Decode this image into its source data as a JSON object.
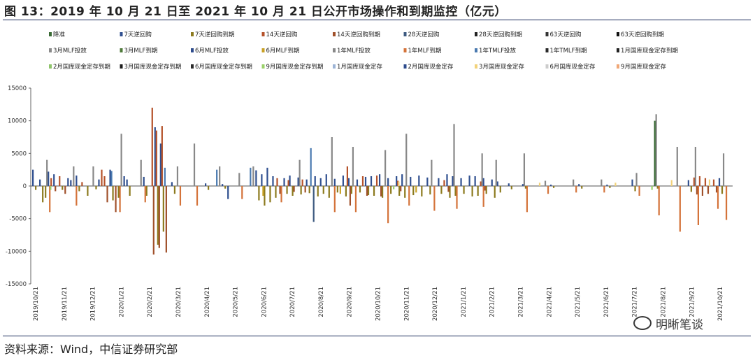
{
  "title": "图 13：2019 年 10 月 21 日至 2021 年 10 月 21 日公开市场操作和到期监控（亿元）",
  "source": "资料来源：Wind，中信证券研究部",
  "watermark": "明晰笔谈",
  "chart_data": {
    "type": "bar",
    "ylim": [
      -15000,
      15000
    ],
    "yticks": [
      15000,
      10000,
      5000,
      0,
      -5000,
      -10000,
      -15000
    ],
    "xticks": [
      "2019/10/21",
      "2019/11/21",
      "2019/12/21",
      "2020/1/21",
      "2020/2/21",
      "2020/3/21",
      "2020/4/21",
      "2020/5/21",
      "2020/6/21",
      "2020/7/21",
      "2020/8/21",
      "2020/9/21",
      "2020/10/21",
      "2020/11/21",
      "2020/12/21",
      "2021/1/21",
      "2021/2/21",
      "2021/3/21",
      "2021/4/21",
      "2021/5/21",
      "2021/6/21",
      "2021/7/21",
      "2021/8/21",
      "2021/9/21",
      "2021/10/21"
    ],
    "legend": [
      {
        "name": "降准",
        "color": "#3a6b35"
      },
      {
        "name": "7天逆回购",
        "color": "#2f4f8f"
      },
      {
        "name": "7天逆回购到期",
        "color": "#8c7a1e"
      },
      {
        "name": "14天逆回购",
        "color": "#b5522a"
      },
      {
        "name": "14天逆回购到期",
        "color": "#a0502a"
      },
      {
        "name": "28天逆回购",
        "color": "#3d5a80"
      },
      {
        "name": "28天逆回购到期",
        "color": "#222222"
      },
      {
        "name": "63天逆回购",
        "color": "#333333"
      },
      {
        "name": "63天逆回购到期",
        "color": "#111111"
      },
      {
        "name": "3月MLF投放",
        "color": "#8a8a8a"
      },
      {
        "name": "3月MLF到期",
        "color": "#4f7a3a"
      },
      {
        "name": "6月MLF投放",
        "color": "#2d4b8c"
      },
      {
        "name": "6月MLF到期",
        "color": "#c9a227"
      },
      {
        "name": "1年MLF投放",
        "color": "#888888"
      },
      {
        "name": "1年MLF到期",
        "color": "#d4733a"
      },
      {
        "name": "1年TMLF投放",
        "color": "#4a7ab0"
      },
      {
        "name": "1年TMLF到期",
        "color": "#2a2a2a"
      },
      {
        "name": "1月国库现金定存到期",
        "color": "#222222"
      },
      {
        "name": "2月国库现金定存到期",
        "color": "#8fc46b"
      },
      {
        "name": "3月国库现金定存到期",
        "color": "#1a1a1a"
      },
      {
        "name": "6月国库现金定存到期",
        "color": "#2a2a2a"
      },
      {
        "name": "9月国库现金定存到期",
        "color": "#9bd16b"
      },
      {
        "name": "1月国库现金定存",
        "color": "#9db4d6"
      },
      {
        "name": "2月国库现金定存",
        "color": "#2d4b8c"
      },
      {
        "name": "3月国库现金定存",
        "color": "#f2d27a"
      },
      {
        "name": "6月国库现金定存",
        "color": "#cccccc"
      },
      {
        "name": "9月国库现金定存",
        "color": "#f0a878"
      }
    ],
    "series": [
      {
        "name": "7天逆回购",
        "color": "#2f4f8f",
        "points": [
          [
            0.5,
            2500
          ],
          [
            3,
            1000
          ],
          [
            6,
            2200
          ],
          [
            8,
            1800
          ],
          [
            13,
            1200
          ],
          [
            14,
            900
          ],
          [
            16,
            1600
          ],
          [
            24,
            1000
          ],
          [
            28,
            2500
          ],
          [
            33,
            1500
          ],
          [
            34,
            1000
          ],
          [
            40,
            1400
          ],
          [
            44,
            9000
          ],
          [
            46,
            6500
          ],
          [
            50,
            600
          ],
          [
            62,
            400
          ],
          [
            68,
            300
          ],
          [
            70,
            -2000
          ],
          [
            80,
            2400
          ],
          [
            82,
            1800
          ],
          [
            84,
            2800
          ],
          [
            86,
            1500
          ],
          [
            90,
            1200
          ],
          [
            92,
            1600
          ],
          [
            95,
            1300
          ],
          [
            98,
            1000
          ],
          [
            101,
            1500
          ],
          [
            103,
            1200
          ],
          [
            105,
            1800
          ],
          [
            108,
            1100
          ],
          [
            111,
            1600
          ],
          [
            113,
            1200
          ],
          [
            116,
            1000
          ],
          [
            119,
            1400
          ],
          [
            121,
            1500
          ],
          [
            124,
            1800
          ],
          [
            127,
            1200
          ],
          [
            130,
            1500
          ],
          [
            132,
            1800
          ],
          [
            135,
            1400
          ],
          [
            138,
            1600
          ],
          [
            141,
            1300
          ],
          [
            145,
            1200
          ],
          [
            148,
            1800
          ],
          [
            150,
            1500
          ],
          [
            153,
            1200
          ],
          [
            156,
            1600
          ],
          [
            158,
            1500
          ],
          [
            161,
            1200
          ],
          [
            164,
            1000
          ],
          [
            166,
            700
          ],
          [
            170,
            400
          ],
          [
            175,
            300
          ],
          [
            185,
            200
          ],
          [
            195,
            300
          ],
          [
            205,
            200
          ],
          [
            214,
            1000
          ],
          [
            222,
            300
          ],
          [
            234,
            900
          ],
          [
            245,
            1200
          ]
        ]
      },
      {
        "name": "7天逆回购到期",
        "color": "#8c7a1e",
        "points": [
          [
            1.5,
            -600
          ],
          [
            4,
            -2500
          ],
          [
            5,
            -1800
          ],
          [
            11,
            -600
          ],
          [
            17,
            -800
          ],
          [
            20,
            -1500
          ],
          [
            23,
            -500
          ],
          [
            29,
            -2200
          ],
          [
            31,
            -1800
          ],
          [
            35,
            -1500
          ],
          [
            41,
            -1500
          ],
          [
            45,
            -9000
          ],
          [
            47,
            -7000
          ],
          [
            51,
            -1200
          ],
          [
            63,
            -600
          ],
          [
            69,
            -400
          ],
          [
            81,
            -2200
          ],
          [
            83,
            -3000
          ],
          [
            85,
            -2500
          ],
          [
            87,
            -1800
          ],
          [
            91,
            -1200
          ],
          [
            93,
            -1500
          ],
          [
            96,
            -1300
          ],
          [
            99,
            -1100
          ],
          [
            102,
            -1600
          ],
          [
            104,
            -1200
          ],
          [
            106,
            -1800
          ],
          [
            109,
            -1000
          ],
          [
            112,
            -1600
          ],
          [
            114,
            -1200
          ],
          [
            117,
            -1000
          ],
          [
            120,
            -1400
          ],
          [
            122,
            -1500
          ],
          [
            125,
            -1800
          ],
          [
            128,
            -1200
          ],
          [
            131,
            -1500
          ],
          [
            133,
            -1800
          ],
          [
            136,
            -1400
          ],
          [
            139,
            -1600
          ],
          [
            142,
            -1300
          ],
          [
            146,
            -1200
          ],
          [
            149,
            -1800
          ],
          [
            151,
            -1500
          ],
          [
            154,
            -1200
          ],
          [
            157,
            -1600
          ],
          [
            159,
            -1500
          ],
          [
            162,
            -1200
          ],
          [
            165,
            -1800
          ],
          [
            167,
            -1000
          ],
          [
            171,
            -500
          ],
          [
            176,
            -400
          ],
          [
            186,
            -300
          ],
          [
            196,
            -400
          ],
          [
            206,
            -300
          ],
          [
            215,
            -800
          ],
          [
            223,
            -400
          ],
          [
            235,
            -900
          ],
          [
            246,
            -1200
          ]
        ]
      },
      {
        "name": "14天逆回购",
        "color": "#b5522a",
        "points": [
          [
            7,
            1200
          ],
          [
            10,
            1500
          ],
          [
            18,
            600
          ],
          [
            25,
            2500
          ],
          [
            26,
            1500
          ],
          [
            43,
            12000
          ],
          [
            44.5,
            8500
          ],
          [
            46.5,
            9200
          ],
          [
            87.5,
            1200
          ],
          [
            91.5,
            900
          ],
          [
            96.5,
            1000
          ],
          [
            112.5,
            3000
          ],
          [
            118,
            1500
          ],
          [
            123,
            1600
          ],
          [
            130.5,
            800
          ],
          [
            147,
            900
          ],
          [
            160,
            700
          ],
          [
            236,
            1300
          ],
          [
            238,
            1500
          ],
          [
            240,
            1200
          ],
          [
            243,
            1000
          ]
        ]
      },
      {
        "name": "14天逆回购到期",
        "color": "#a0502a",
        "points": [
          [
            8.5,
            -800
          ],
          [
            12,
            -1200
          ],
          [
            27,
            -2500
          ],
          [
            30,
            -4000
          ],
          [
            43.5,
            -10500
          ],
          [
            45.5,
            -9500
          ],
          [
            48,
            -10200
          ],
          [
            88.5,
            -1200
          ],
          [
            93.5,
            -900
          ],
          [
            97.5,
            -1000
          ],
          [
            113.5,
            -3000
          ],
          [
            119.5,
            -1500
          ],
          [
            124.5,
            -1600
          ],
          [
            131.5,
            -800
          ],
          [
            148.5,
            -900
          ],
          [
            161.5,
            -700
          ],
          [
            237,
            -1300
          ],
          [
            239,
            -1500
          ],
          [
            241,
            -1200
          ],
          [
            244,
            -1000
          ]
        ]
      },
      {
        "name": "1年MLF投放",
        "color": "#888888",
        "points": [
          [
            5.5,
            4000
          ],
          [
            15,
            3000
          ],
          [
            22,
            3000
          ],
          [
            32,
            8000
          ],
          [
            39,
            4000
          ],
          [
            52,
            3000
          ],
          [
            58,
            6500
          ],
          [
            67,
            3000
          ],
          [
            74,
            2000
          ],
          [
            79,
            3000
          ],
          [
            95.5,
            4000
          ],
          [
            107,
            7500
          ],
          [
            114.5,
            6000
          ],
          [
            126,
            5500
          ],
          [
            133.5,
            8000
          ],
          [
            142.5,
            4000
          ],
          [
            150.5,
            9500
          ],
          [
            160.5,
            5000
          ],
          [
            165.5,
            4000
          ],
          [
            175.5,
            5000
          ],
          [
            183,
            800
          ],
          [
            193,
            1000
          ],
          [
            203,
            1000
          ],
          [
            215.5,
            2000
          ],
          [
            222.5,
            11000
          ],
          [
            230,
            6000
          ],
          [
            236.5,
            6000
          ],
          [
            246.5,
            5000
          ]
        ]
      },
      {
        "name": "1年MLF到期",
        "color": "#d4733a",
        "points": [
          [
            6.5,
            -4000
          ],
          [
            16,
            -3000
          ],
          [
            31.5,
            -4000
          ],
          [
            40.5,
            -2500
          ],
          [
            53,
            -3000
          ],
          [
            59,
            -3000
          ],
          [
            75,
            -2000
          ],
          [
            89,
            -2500
          ],
          [
            108,
            -4000
          ],
          [
            115.5,
            -4000
          ],
          [
            127,
            -5700
          ],
          [
            134.5,
            -3000
          ],
          [
            143.5,
            -3800
          ],
          [
            151.5,
            -3500
          ],
          [
            161,
            -3200
          ],
          [
            176.5,
            -4000
          ],
          [
            184,
            -1200
          ],
          [
            194,
            -1000
          ],
          [
            204,
            -1000
          ],
          [
            216.5,
            -1500
          ],
          [
            223.5,
            -4500
          ],
          [
            231,
            -7000
          ],
          [
            237.5,
            -6000
          ],
          [
            244.5,
            -3500
          ],
          [
            247.5,
            -5200
          ]
        ]
      },
      {
        "name": "1年TMLF投放",
        "color": "#4a7ab0",
        "points": [
          [
            28.5,
            2300
          ],
          [
            47.5,
            2800
          ],
          [
            66,
            2500
          ],
          [
            78,
            2800
          ],
          [
            99.5,
            5800
          ]
        ]
      },
      {
        "name": "6月MLF到期",
        "color": "#c9a227",
        "points": [
          [
            82.5,
            -1500
          ],
          [
            110,
            -1200
          ],
          [
            137,
            -1000
          ]
        ]
      },
      {
        "name": "3月国库现金定存",
        "color": "#f2d27a",
        "points": [
          [
            130.8,
            700
          ],
          [
            181,
            500
          ],
          [
            208,
            500
          ],
          [
            228,
            900
          ],
          [
            241.5,
            1000
          ]
        ]
      },
      {
        "name": "9月国库现金定存到期",
        "color": "#9bd16b",
        "points": [
          [
            6.8,
            -600
          ],
          [
            129,
            -500
          ],
          [
            221,
            -600
          ]
        ]
      },
      {
        "name": "降准",
        "color": "#3a6b35",
        "points": [
          [
            222,
            10000
          ]
        ]
      },
      {
        "name": "28天逆回购",
        "color": "#3d5a80",
        "points": [
          [
            100.5,
            -5500
          ]
        ]
      }
    ]
  }
}
